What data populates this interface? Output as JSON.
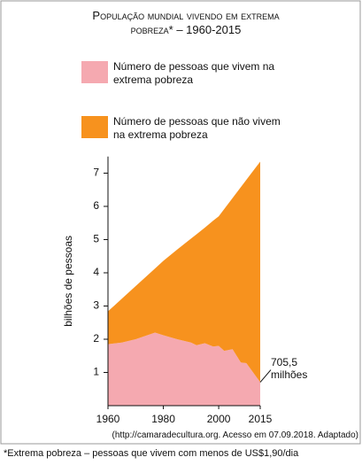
{
  "chart_data": {
    "type": "stacked_area",
    "title": "População mundial vivendo em extrema pobreza* – 1960-2015",
    "y_label": "bilhões de pessoas",
    "source": "(http://camaradecultura.org. Acesso em 07.09.2018. Adaptado)",
    "footnote": "*Extrema pobreza – pessoas que vivem com menos de US$1,90/dia",
    "x": [
      1960,
      1965,
      1970,
      1977,
      1980,
      1985,
      1990,
      1992,
      1995,
      1998,
      2000,
      2002,
      2005,
      2008,
      2010,
      2012,
      2015
    ],
    "series": [
      {
        "name": "Número de pessoas que vivem na extrema pobreza",
        "color": "#f5a9b0",
        "values": [
          1.85,
          1.9,
          2.0,
          2.2,
          2.12,
          2.0,
          1.9,
          1.82,
          1.88,
          1.78,
          1.8,
          1.65,
          1.7,
          1.3,
          1.28,
          1.05,
          0.7055
        ],
        "value_labels": [
          null,
          null,
          null,
          null,
          null,
          null,
          null,
          null,
          null,
          null,
          null,
          null,
          null,
          null,
          null,
          null,
          "705,5 milhões"
        ]
      },
      {
        "name": "Número de pessoas que não vivem na extrema pobreza",
        "color": "#f7921e",
        "values": [
          0.99,
          1.32,
          1.6,
          1.93,
          2.24,
          2.7,
          3.13,
          3.34,
          3.48,
          3.79,
          3.9,
          4.27,
          4.55,
          5.28,
          5.52,
          5.97,
          6.64
        ]
      }
    ],
    "xlim": [
      1960,
      2015
    ],
    "xticks": [
      1960,
      1980,
      2000,
      2015
    ],
    "ylim": [
      0,
      7.5
    ],
    "yticks": [
      1,
      2,
      3,
      4,
      5,
      6,
      7
    ]
  }
}
